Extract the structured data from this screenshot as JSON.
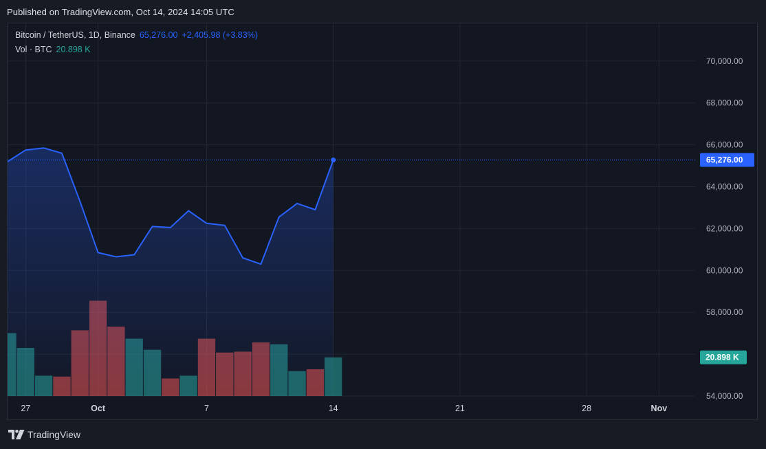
{
  "header": {
    "published": "Published on TradingView.com, Oct 14, 2024 14:05 UTC"
  },
  "legend": {
    "symbol": "Bitcoin / TetherUS, 1D, Binance",
    "price": "65,276.00",
    "change": "+2,405.98 (+3.83%)",
    "vol_label": "Vol · BTC",
    "vol_value": "20.898 K"
  },
  "footer": {
    "brand": "TradingView",
    "logo_icon": "tradingview-logo-icon"
  },
  "colors": {
    "line": "#2962ff",
    "volume_up": "#26a69a",
    "volume_down": "#ef5350",
    "background": "#131722"
  },
  "chart_data": {
    "type": "line",
    "price_axis": {
      "ticks": [
        54000,
        56000,
        58000,
        60000,
        62000,
        64000,
        66000,
        68000,
        70000
      ],
      "tick_labels": [
        "54,000.00",
        "56,000.00",
        "58,000.00",
        "60,000.00",
        "62,000.00",
        "64,000.00",
        "66,000.00",
        "68,000.00",
        "70,000.00"
      ],
      "range": [
        54000,
        71800
      ]
    },
    "x_axis": {
      "labels": [
        {
          "text": "27",
          "date": "2024-09-27",
          "bold": false
        },
        {
          "text": "Oct",
          "date": "2024-10-01",
          "bold": true
        },
        {
          "text": "7",
          "date": "2024-10-07",
          "bold": false
        },
        {
          "text": "14",
          "date": "2024-10-14",
          "bold": false
        },
        {
          "text": "21",
          "date": "2024-10-21",
          "bold": false
        },
        {
          "text": "28",
          "date": "2024-10-28",
          "bold": false
        },
        {
          "text": "Nov",
          "date": "2024-11-01",
          "bold": true
        }
      ],
      "range": [
        "2024-09-26",
        "2024-11-03"
      ]
    },
    "series": [
      {
        "type": "line",
        "points": [
          {
            "date": "2024-09-26",
            "close": 65200
          },
          {
            "date": "2024-09-27",
            "close": 65750
          },
          {
            "date": "2024-09-28",
            "close": 65850
          },
          {
            "date": "2024-09-29",
            "close": 65600
          },
          {
            "date": "2024-09-30",
            "close": 63300
          },
          {
            "date": "2024-10-01",
            "close": 60850
          },
          {
            "date": "2024-10-02",
            "close": 60650
          },
          {
            "date": "2024-10-03",
            "close": 60750
          },
          {
            "date": "2024-10-04",
            "close": 62100
          },
          {
            "date": "2024-10-05",
            "close": 62050
          },
          {
            "date": "2024-10-06",
            "close": 62850
          },
          {
            "date": "2024-10-07",
            "close": 62250
          },
          {
            "date": "2024-10-08",
            "close": 62150
          },
          {
            "date": "2024-10-09",
            "close": 60600
          },
          {
            "date": "2024-10-10",
            "close": 60300
          },
          {
            "date": "2024-10-11",
            "close": 62550
          },
          {
            "date": "2024-10-12",
            "close": 63200
          },
          {
            "date": "2024-10-13",
            "close": 62900
          },
          {
            "date": "2024-10-14",
            "close": 65276
          }
        ]
      },
      {
        "type": "bar",
        "name": "Vol · BTC",
        "unit": "K",
        "range": [
          0,
          52
        ],
        "bars": [
          {
            "date": "2024-09-26",
            "value": 34,
            "dir": "up"
          },
          {
            "date": "2024-09-27",
            "value": 26,
            "dir": "up"
          },
          {
            "date": "2024-09-28",
            "value": 11,
            "dir": "up"
          },
          {
            "date": "2024-09-29",
            "value": 10.5,
            "dir": "down"
          },
          {
            "date": "2024-09-30",
            "value": 35.5,
            "dir": "down"
          },
          {
            "date": "2024-10-01",
            "value": 51.5,
            "dir": "down"
          },
          {
            "date": "2024-10-02",
            "value": 37.5,
            "dir": "down"
          },
          {
            "date": "2024-10-03",
            "value": 31,
            "dir": "up"
          },
          {
            "date": "2024-10-04",
            "value": 25,
            "dir": "up"
          },
          {
            "date": "2024-10-05",
            "value": 9.5,
            "dir": "down"
          },
          {
            "date": "2024-10-06",
            "value": 11,
            "dir": "up"
          },
          {
            "date": "2024-10-07",
            "value": 31,
            "dir": "down"
          },
          {
            "date": "2024-10-08",
            "value": 23.5,
            "dir": "down"
          },
          {
            "date": "2024-10-09",
            "value": 24,
            "dir": "down"
          },
          {
            "date": "2024-10-10",
            "value": 29,
            "dir": "down"
          },
          {
            "date": "2024-10-11",
            "value": 28,
            "dir": "up"
          },
          {
            "date": "2024-10-12",
            "value": 13.5,
            "dir": "up"
          },
          {
            "date": "2024-10-13",
            "value": 14.5,
            "dir": "down"
          },
          {
            "date": "2024-10-14",
            "value": 20.898,
            "dir": "up"
          }
        ]
      }
    ],
    "last_price_label": "65,276.00",
    "last_volume_label": "20.898 K",
    "grid": true
  }
}
